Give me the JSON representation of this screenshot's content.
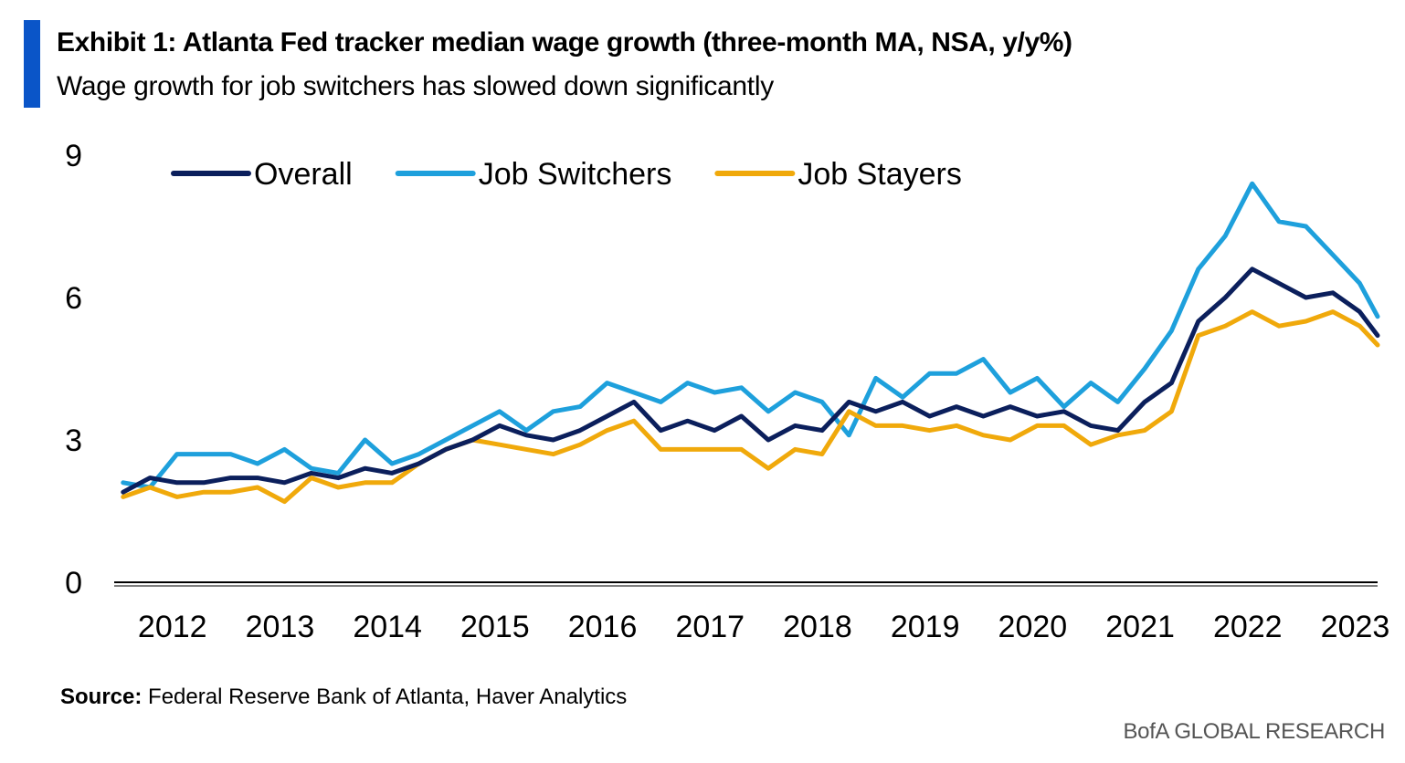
{
  "header": {
    "title": "Exhibit 1: Atlanta Fed tracker median wage growth (three-month MA, NSA, y/y%)",
    "subtitle": "Wage growth for job switchers has slowed down significantly",
    "accent_color": "#0a55c8"
  },
  "footer": {
    "source_label": "Source:",
    "source_text": "Federal Reserve Bank of Atlanta, Haver Analytics",
    "brand": "BofA GLOBAL RESEARCH"
  },
  "chart_data": {
    "type": "line",
    "title": "Exhibit 1: Atlanta Fed tracker median wage growth (three-month MA, NSA, y/y%)",
    "xlabel": "",
    "ylabel": "",
    "ylim": [
      0,
      9
    ],
    "yticks": [
      0,
      3,
      6,
      9
    ],
    "xticks": [
      "2012",
      "2013",
      "2014",
      "2015",
      "2016",
      "2017",
      "2018",
      "2019",
      "2020",
      "2021",
      "2022",
      "2023"
    ],
    "xlim": [
      "2012-01",
      "2023-09"
    ],
    "grid": false,
    "legend_position": "top-left",
    "series": [
      {
        "name": "Overall",
        "color": "#0b1f5c",
        "points": [
          [
            "2012-01",
            1.9
          ],
          [
            "2012-04",
            2.2
          ],
          [
            "2012-07",
            2.1
          ],
          [
            "2012-10",
            2.1
          ],
          [
            "2013-01",
            2.2
          ],
          [
            "2013-04",
            2.2
          ],
          [
            "2013-07",
            2.1
          ],
          [
            "2013-10",
            2.3
          ],
          [
            "2014-01",
            2.2
          ],
          [
            "2014-04",
            2.4
          ],
          [
            "2014-07",
            2.3
          ],
          [
            "2014-10",
            2.5
          ],
          [
            "2015-01",
            2.8
          ],
          [
            "2015-04",
            3.0
          ],
          [
            "2015-07",
            3.3
          ],
          [
            "2015-10",
            3.1
          ],
          [
            "2016-01",
            3.0
          ],
          [
            "2016-04",
            3.2
          ],
          [
            "2016-07",
            3.5
          ],
          [
            "2016-10",
            3.8
          ],
          [
            "2017-01",
            3.2
          ],
          [
            "2017-04",
            3.4
          ],
          [
            "2017-07",
            3.2
          ],
          [
            "2017-10",
            3.5
          ],
          [
            "2018-01",
            3.0
          ],
          [
            "2018-04",
            3.3
          ],
          [
            "2018-07",
            3.2
          ],
          [
            "2018-10",
            3.8
          ],
          [
            "2019-01",
            3.6
          ],
          [
            "2019-04",
            3.8
          ],
          [
            "2019-07",
            3.5
          ],
          [
            "2019-10",
            3.7
          ],
          [
            "2020-01",
            3.5
          ],
          [
            "2020-04",
            3.7
          ],
          [
            "2020-07",
            3.5
          ],
          [
            "2020-10",
            3.6
          ],
          [
            "2021-01",
            3.3
          ],
          [
            "2021-04",
            3.2
          ],
          [
            "2021-07",
            3.8
          ],
          [
            "2021-10",
            4.2
          ],
          [
            "2022-01",
            5.5
          ],
          [
            "2022-04",
            6.0
          ],
          [
            "2022-07",
            6.6
          ],
          [
            "2022-10",
            6.3
          ],
          [
            "2023-01",
            6.0
          ],
          [
            "2023-04",
            6.1
          ],
          [
            "2023-07",
            5.7
          ],
          [
            "2023-09",
            5.2
          ]
        ]
      },
      {
        "name": "Job Switchers",
        "color": "#1ea0dc",
        "points": [
          [
            "2012-01",
            2.1
          ],
          [
            "2012-04",
            2.0
          ],
          [
            "2012-07",
            2.7
          ],
          [
            "2012-10",
            2.7
          ],
          [
            "2013-01",
            2.7
          ],
          [
            "2013-04",
            2.5
          ],
          [
            "2013-07",
            2.8
          ],
          [
            "2013-10",
            2.4
          ],
          [
            "2014-01",
            2.3
          ],
          [
            "2014-04",
            3.0
          ],
          [
            "2014-07",
            2.5
          ],
          [
            "2014-10",
            2.7
          ],
          [
            "2015-01",
            3.0
          ],
          [
            "2015-04",
            3.3
          ],
          [
            "2015-07",
            3.6
          ],
          [
            "2015-10",
            3.2
          ],
          [
            "2016-01",
            3.6
          ],
          [
            "2016-04",
            3.7
          ],
          [
            "2016-07",
            4.2
          ],
          [
            "2016-10",
            4.0
          ],
          [
            "2017-01",
            3.8
          ],
          [
            "2017-04",
            4.2
          ],
          [
            "2017-07",
            4.0
          ],
          [
            "2017-10",
            4.1
          ],
          [
            "2018-01",
            3.6
          ],
          [
            "2018-04",
            4.0
          ],
          [
            "2018-07",
            3.8
          ],
          [
            "2018-10",
            3.1
          ],
          [
            "2019-01",
            4.3
          ],
          [
            "2019-04",
            3.9
          ],
          [
            "2019-07",
            4.4
          ],
          [
            "2019-10",
            4.4
          ],
          [
            "2020-01",
            4.7
          ],
          [
            "2020-04",
            4.0
          ],
          [
            "2020-07",
            4.3
          ],
          [
            "2020-10",
            3.7
          ],
          [
            "2021-01",
            4.2
          ],
          [
            "2021-04",
            3.8
          ],
          [
            "2021-07",
            4.5
          ],
          [
            "2021-10",
            5.3
          ],
          [
            "2022-01",
            6.6
          ],
          [
            "2022-04",
            7.3
          ],
          [
            "2022-07",
            8.4
          ],
          [
            "2022-10",
            7.6
          ],
          [
            "2023-01",
            7.5
          ],
          [
            "2023-04",
            6.9
          ],
          [
            "2023-07",
            6.3
          ],
          [
            "2023-09",
            5.6
          ]
        ]
      },
      {
        "name": "Job Stayers",
        "color": "#f0a90b",
        "points": [
          [
            "2012-01",
            1.8
          ],
          [
            "2012-04",
            2.0
          ],
          [
            "2012-07",
            1.8
          ],
          [
            "2012-10",
            1.9
          ],
          [
            "2013-01",
            1.9
          ],
          [
            "2013-04",
            2.0
          ],
          [
            "2013-07",
            1.7
          ],
          [
            "2013-10",
            2.2
          ],
          [
            "2014-01",
            2.0
          ],
          [
            "2014-04",
            2.1
          ],
          [
            "2014-07",
            2.1
          ],
          [
            "2014-10",
            2.5
          ],
          [
            "2015-01",
            2.8
          ],
          [
            "2015-04",
            3.0
          ],
          [
            "2015-07",
            2.9
          ],
          [
            "2015-10",
            2.8
          ],
          [
            "2016-01",
            2.7
          ],
          [
            "2016-04",
            2.9
          ],
          [
            "2016-07",
            3.2
          ],
          [
            "2016-10",
            3.4
          ],
          [
            "2017-01",
            2.8
          ],
          [
            "2017-04",
            2.8
          ],
          [
            "2017-07",
            2.8
          ],
          [
            "2017-10",
            2.8
          ],
          [
            "2018-01",
            2.4
          ],
          [
            "2018-04",
            2.8
          ],
          [
            "2018-07",
            2.7
          ],
          [
            "2018-10",
            3.6
          ],
          [
            "2019-01",
            3.3
          ],
          [
            "2019-04",
            3.3
          ],
          [
            "2019-07",
            3.2
          ],
          [
            "2019-10",
            3.3
          ],
          [
            "2020-01",
            3.1
          ],
          [
            "2020-04",
            3.0
          ],
          [
            "2020-07",
            3.3
          ],
          [
            "2020-10",
            3.3
          ],
          [
            "2021-01",
            2.9
          ],
          [
            "2021-04",
            3.1
          ],
          [
            "2021-07",
            3.2
          ],
          [
            "2021-10",
            3.6
          ],
          [
            "2022-01",
            5.2
          ],
          [
            "2022-04",
            5.4
          ],
          [
            "2022-07",
            5.7
          ],
          [
            "2022-10",
            5.4
          ],
          [
            "2023-01",
            5.5
          ],
          [
            "2023-04",
            5.7
          ],
          [
            "2023-07",
            5.4
          ],
          [
            "2023-09",
            5.0
          ]
        ]
      }
    ]
  }
}
